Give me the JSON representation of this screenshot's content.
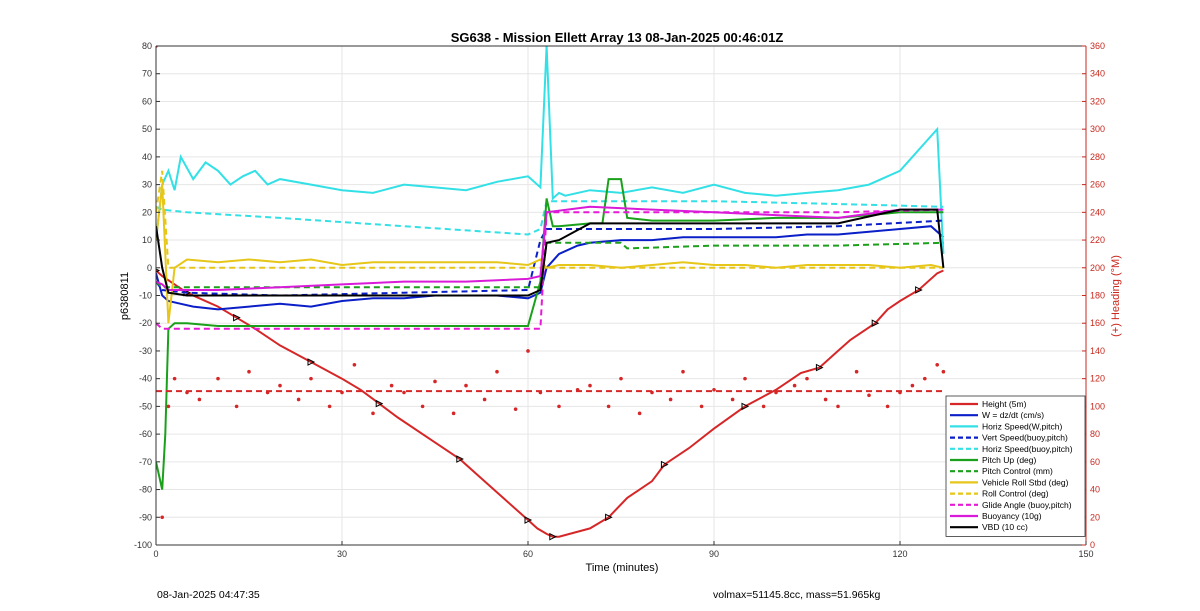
{
  "chart_data": {
    "type": "line",
    "title": "SG638 - Mission Ellett Array 13 08-Jan-2025 00:46:01Z",
    "xlabel": "Time (minutes)",
    "ylabel_left": "p6380811",
    "ylabel_right": "(+) Heading (°M)",
    "xlim": [
      0,
      150
    ],
    "ylim_left": [
      -100,
      80
    ],
    "ylim_right": [
      0,
      360
    ],
    "x_ticks": [
      "0",
      "30",
      "60",
      "90",
      "120",
      "150"
    ],
    "y_ticks_left": [
      "-100",
      "-90",
      "-80",
      "-70",
      "-60",
      "-50",
      "-40",
      "-30",
      "-20",
      "-10",
      "0",
      "10",
      "20",
      "30",
      "40",
      "50",
      "60",
      "70",
      "80"
    ],
    "y_ticks_right": [
      "0",
      "20",
      "40",
      "60",
      "80",
      "100",
      "120",
      "140",
      "160",
      "180",
      "200",
      "220",
      "240",
      "260",
      "280",
      "300",
      "320",
      "340",
      "360"
    ],
    "grid": true,
    "legend_position": "bottom-right",
    "series": [
      {
        "name": "Height (5m)",
        "color": "#d62728",
        "style": "solid",
        "axis": "left",
        "x": [
          0,
          1,
          3,
          5,
          7,
          10,
          13,
          16,
          20,
          25,
          30,
          33,
          36,
          39,
          45,
          49,
          52,
          56,
          60,
          61.5,
          63,
          64,
          65,
          70,
          73,
          76,
          80,
          82,
          86,
          90,
          95,
          100,
          104,
          107,
          110,
          112,
          116,
          118,
          120,
          123,
          126,
          127
        ],
        "y": [
          -1,
          -3,
          -6,
          -9,
          -11,
          -14,
          -18,
          -22,
          -28,
          -34,
          -40,
          -44,
          -49,
          -54,
          -63,
          -69,
          -75,
          -83,
          -91,
          -94,
          -96,
          -97,
          -97,
          -94,
          -90,
          -83,
          -77,
          -71,
          -65,
          -58,
          -50,
          -44,
          -38,
          -36,
          -30,
          -26,
          -20,
          -15,
          -12,
          -8,
          -2,
          -1
        ]
      },
      {
        "name": "W = dz/dt (cm/s)",
        "color": "#0a1fc7",
        "style": "solid",
        "axis": "left",
        "x": [
          0,
          1,
          2,
          4,
          6,
          10,
          15,
          20,
          25,
          30,
          35,
          40,
          45,
          50,
          55,
          60,
          62,
          63,
          65,
          68,
          70,
          75,
          80,
          85,
          90,
          95,
          100,
          105,
          110,
          115,
          120,
          125,
          127
        ],
        "y": [
          -2,
          -10,
          -12,
          -13,
          -14,
          -15,
          -14,
          -13,
          -14,
          -12,
          -11,
          -11,
          -10,
          -10,
          -10,
          -11,
          -9,
          0,
          5,
          8,
          9,
          10,
          10,
          11,
          11,
          11,
          11,
          12,
          12,
          13,
          14,
          15,
          11
        ]
      },
      {
        "name": "Horiz Speed(W,pitch)",
        "color": "#33e0e6",
        "style": "solid",
        "axis": "left",
        "x": [
          0,
          1,
          2,
          3,
          4,
          6,
          8,
          10,
          12,
          14,
          16,
          18,
          20,
          25,
          30,
          35,
          40,
          45,
          50,
          55,
          60,
          62,
          63,
          64,
          65,
          66,
          70,
          75,
          80,
          85,
          90,
          95,
          100,
          105,
          110,
          115,
          120,
          122,
          124,
          126,
          127
        ],
        "y": [
          10,
          30,
          35,
          28,
          40,
          32,
          38,
          35,
          30,
          33,
          35,
          30,
          32,
          30,
          28,
          27,
          30,
          29,
          28,
          31,
          33,
          29,
          80,
          25,
          27,
          26,
          28,
          27,
          29,
          27,
          30,
          27,
          26,
          27,
          28,
          30,
          35,
          40,
          45,
          50,
          5
        ]
      },
      {
        "name": "Vert Speed(buoy,pitch)",
        "color": "#0a1fc7",
        "style": "dashed",
        "axis": "left",
        "x": [
          0,
          1,
          5,
          20,
          40,
          60,
          62,
          63,
          70,
          90,
          110,
          127
        ],
        "y": [
          -5,
          -8,
          -9,
          -10,
          -9,
          -8,
          10,
          14,
          14,
          14,
          15,
          17
        ]
      },
      {
        "name": "Horiz Speed(buoy,pitch)",
        "color": "#33e0e6",
        "style": "dashed",
        "axis": "left",
        "x": [
          0,
          1,
          5,
          20,
          40,
          60,
          62,
          63,
          70,
          90,
          110,
          127
        ],
        "y": [
          22,
          21,
          20,
          18,
          15,
          12,
          14,
          24,
          24,
          24,
          23,
          22
        ]
      },
      {
        "name": "Pitch Up (deg)",
        "color": "#1aa01a",
        "style": "solid",
        "axis": "left",
        "x": [
          0,
          1,
          1.5,
          2,
          3,
          5,
          10,
          20,
          30,
          40,
          50,
          60,
          62,
          63,
          64,
          65,
          70,
          72,
          73,
          75,
          76,
          80,
          90,
          100,
          110,
          120,
          127
        ],
        "y": [
          -70,
          -80,
          -60,
          -22,
          -20,
          -20,
          -21,
          -21,
          -21,
          -21,
          -21,
          -21,
          -5,
          25,
          15,
          15,
          16,
          16,
          32,
          32,
          18,
          17,
          17,
          18,
          18,
          20,
          20
        ]
      },
      {
        "name": "Pitch Control (mm)",
        "color": "#1aa01a",
        "style": "dashed",
        "axis": "left",
        "x": [
          0,
          1,
          2,
          10,
          30,
          60,
          62,
          63,
          75,
          76,
          90,
          110,
          127
        ],
        "y": [
          -5,
          -7,
          -7,
          -7,
          -7,
          -7,
          -7,
          9,
          9,
          7,
          8,
          8,
          9
        ]
      },
      {
        "name": "Vehicle Roll Stbd (deg)",
        "color": "#e6c619",
        "style": "solid",
        "axis": "left",
        "x": [
          0,
          1,
          2,
          3,
          5,
          10,
          15,
          20,
          25,
          30,
          35,
          40,
          45,
          50,
          55,
          60,
          62,
          63,
          65,
          70,
          75,
          80,
          85,
          90,
          95,
          100,
          105,
          110,
          115,
          120,
          125,
          127
        ],
        "y": [
          10,
          30,
          -20,
          0,
          3,
          2,
          3,
          2,
          3,
          1,
          2,
          2,
          2,
          2,
          2,
          1,
          3,
          0,
          1,
          1,
          0,
          1,
          2,
          1,
          1,
          0,
          1,
          1,
          1,
          0,
          1,
          0
        ]
      },
      {
        "name": "Roll Control (deg)",
        "color": "#e6c619",
        "style": "dashed",
        "axis": "left",
        "x": [
          0,
          1,
          2,
          5,
          20,
          40,
          60,
          62,
          63,
          90,
          110,
          127
        ],
        "y": [
          20,
          35,
          0,
          0,
          0,
          0,
          0,
          0,
          0,
          0,
          0,
          0
        ]
      },
      {
        "name": "Glide Angle (buoy,pitch)",
        "color": "#e619d6",
        "style": "dashed",
        "axis": "left",
        "x": [
          0,
          1,
          5,
          20,
          40,
          60,
          62,
          63,
          70,
          90,
          110,
          127
        ],
        "y": [
          -20,
          -22,
          -22,
          -22,
          -22,
          -22,
          -22,
          20,
          20,
          20,
          20,
          21
        ]
      },
      {
        "name": "Buoyancy (10g)",
        "color": "#d91ad9",
        "style": "solid",
        "axis": "left",
        "x": [
          0,
          1,
          2,
          10,
          20,
          30,
          40,
          50,
          60,
          62,
          63,
          70,
          80,
          90,
          100,
          110,
          120,
          127
        ],
        "y": [
          -5,
          -6,
          -8,
          -8,
          -7,
          -6,
          -5,
          -5,
          -4,
          -3,
          20,
          22,
          21,
          20,
          19,
          18,
          21,
          21
        ]
      },
      {
        "name": "VBD (10 cc)",
        "color": "#000000",
        "style": "solid",
        "axis": "left",
        "x": [
          0,
          1,
          2,
          5,
          20,
          40,
          60,
          62,
          63,
          65,
          70,
          80,
          90,
          100,
          110,
          120,
          126,
          127
        ],
        "y": [
          15,
          0,
          -9,
          -10,
          -10,
          -10,
          -10,
          -8,
          9,
          10,
          16,
          16,
          16,
          16,
          16,
          21,
          21,
          0
        ]
      },
      {
        "name": "Heading",
        "color": "#d62728",
        "style": "dots",
        "axis": "right",
        "x": [
          0,
          1,
          2,
          3,
          5,
          7,
          10,
          13,
          15,
          18,
          20,
          23,
          25,
          28,
          30,
          32,
          35,
          38,
          40,
          43,
          45,
          48,
          50,
          53,
          55,
          58,
          60,
          62,
          65,
          68,
          70,
          73,
          75,
          78,
          80,
          83,
          85,
          88,
          90,
          93,
          95,
          98,
          100,
          103,
          105,
          108,
          110,
          113,
          115,
          118,
          120,
          122,
          124,
          126,
          127
        ],
        "y": [
          360,
          20,
          100,
          120,
          110,
          105,
          120,
          100,
          125,
          110,
          115,
          105,
          120,
          100,
          110,
          130,
          95,
          115,
          110,
          100,
          118,
          95,
          115,
          105,
          125,
          98,
          140,
          110,
          100,
          112,
          115,
          100,
          120,
          95,
          110,
          105,
          125,
          100,
          112,
          105,
          120,
          100,
          110,
          115,
          120,
          105,
          100,
          125,
          108,
          100,
          110,
          115,
          120,
          130,
          125
        ]
      },
      {
        "name": "Heading mean",
        "color": "#d62728",
        "style": "dashed",
        "axis": "right",
        "x": [
          0,
          127
        ],
        "y": [
          111,
          111
        ]
      }
    ]
  },
  "legend": [
    "Height (5m)",
    "W = dz/dt (cm/s)",
    "Horiz Speed(W,pitch)",
    "Vert Speed(buoy,pitch)",
    "Horiz Speed(buoy,pitch)",
    "Pitch Up (deg)",
    "Pitch Control (mm)",
    "Vehicle Roll Stbd (deg)",
    "Roll Control (deg)",
    "Glide Angle (buoy,pitch)",
    "Buoyancy (10g)",
    "VBD (10 cc)"
  ],
  "footer": {
    "timestamp": "08-Jan-2025 04:47:35",
    "summary": "volmax=51145.8cc, mass=51.965kg"
  },
  "colors": {
    "left_axis": "#333333",
    "right_axis": "#c8281e",
    "grid": "#e6e6e6"
  }
}
